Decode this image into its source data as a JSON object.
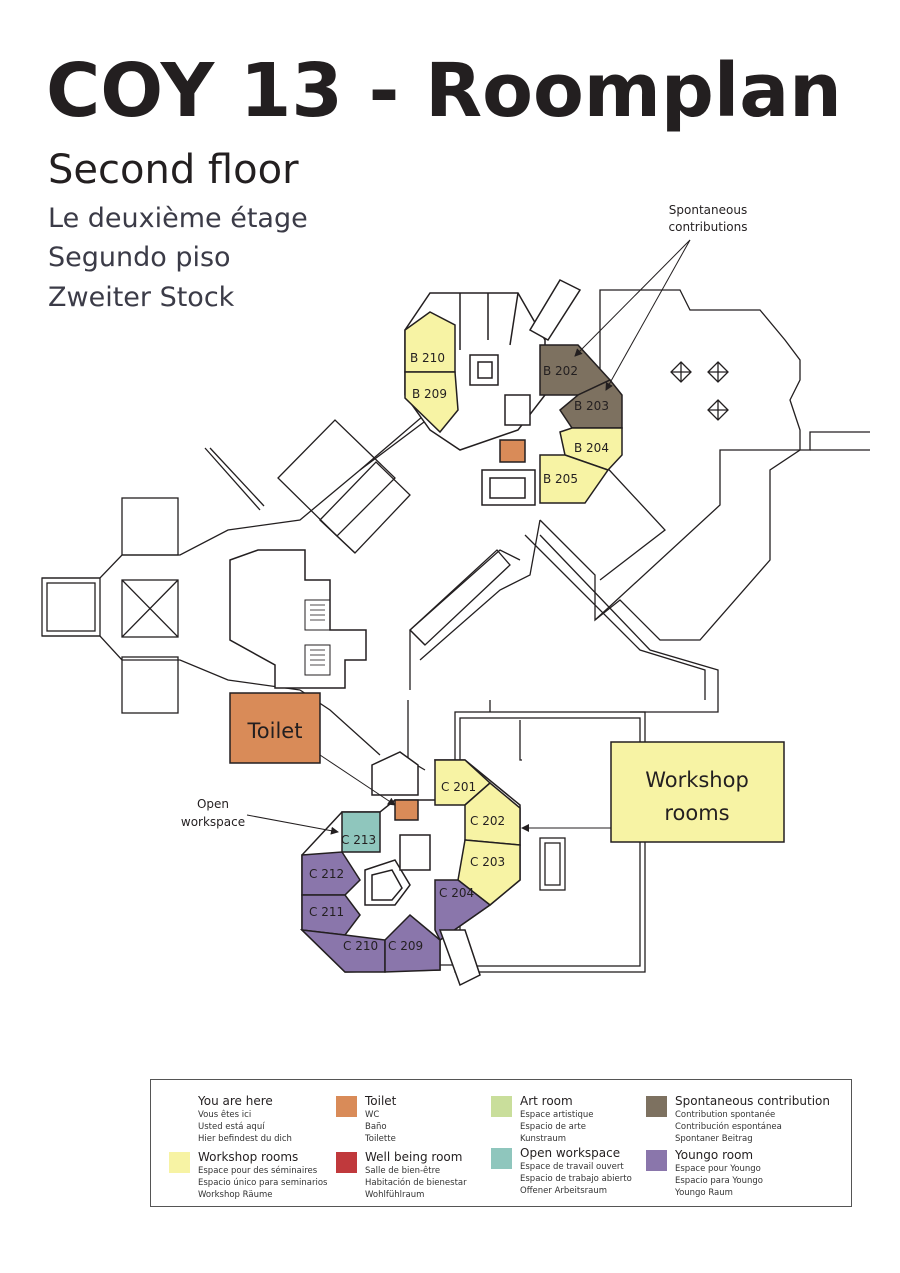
{
  "header": {
    "title": "COY 13 - Roomplan",
    "subtitle": "Second floor",
    "translations": [
      "Le deuxième étage",
      "Segundo piso",
      "Zweiter Stock"
    ]
  },
  "colors": {
    "workshop": "#f7f3a4",
    "toilet": "#d98b58",
    "art": "#c9de9b",
    "wellbeing": "#c0393c",
    "open_workspace": "#8fc6bd",
    "spontaneous": "#7d7160",
    "youngo": "#8a76ab",
    "wall": "#231f20"
  },
  "rooms": {
    "b210": "B 210",
    "b209": "B 209",
    "b202": "B 202",
    "b203": "B 203",
    "b204": "B 204",
    "b205": "B 205",
    "c201": "C 201",
    "c202": "C 202",
    "c203": "C 203",
    "c204": "C 204",
    "c213": "C 213",
    "c212": "C 212",
    "c211": "C 211",
    "c210": "C 210",
    "c209": "C 209"
  },
  "callouts": {
    "toilet": "Toilet",
    "workshop_line1": "Workshop",
    "workshop_line2": "rooms",
    "spontaneous_line1": "Spontaneous",
    "spontaneous_line2": "contributions",
    "open_line1": "Open",
    "open_line2": "workspace"
  },
  "legend": [
    {
      "key": "you_are_here",
      "title": "You are here",
      "subs": [
        "Vous êtes ici",
        "Usted está aquí",
        "Hier befindest du dich"
      ],
      "color": null
    },
    {
      "key": "toilet",
      "title": "Toilet",
      "subs": [
        "WC",
        "Baño",
        "Toilette"
      ],
      "color": "#d98b58"
    },
    {
      "key": "art",
      "title": "Art room",
      "subs": [
        "Espace artistique",
        "Espacio de arte",
        "Kunstraum"
      ],
      "color": "#c9de9b"
    },
    {
      "key": "spontaneous",
      "title": "Spontaneous contribution",
      "subs": [
        "Contribution spontanée",
        "Contribución espontánea",
        "Spontaner Beitrag"
      ],
      "color": "#7d7160"
    },
    {
      "key": "workshop",
      "title": "Workshop rooms",
      "subs": [
        "Espace pour des séminaires",
        "Espacio único para seminarios",
        "Workshop Räume"
      ],
      "color": "#f7f3a4"
    },
    {
      "key": "wellbeing",
      "title": "Well being room",
      "subs": [
        "Salle de bien-être",
        "Habitación de bienestar",
        "Wohlfühlraum"
      ],
      "color": "#c0393c"
    },
    {
      "key": "open",
      "title": "Open workspace",
      "subs": [
        "Espace de travail ouvert",
        "Espacio de trabajo abierto",
        "Offener Arbeitsraum"
      ],
      "color": "#8fc6bd"
    },
    {
      "key": "youngo",
      "title": "Youngo room",
      "subs": [
        "Espace pour Youngo",
        "Espacio para Youngo",
        "Youngo Raum"
      ],
      "color": "#8a76ab"
    }
  ]
}
